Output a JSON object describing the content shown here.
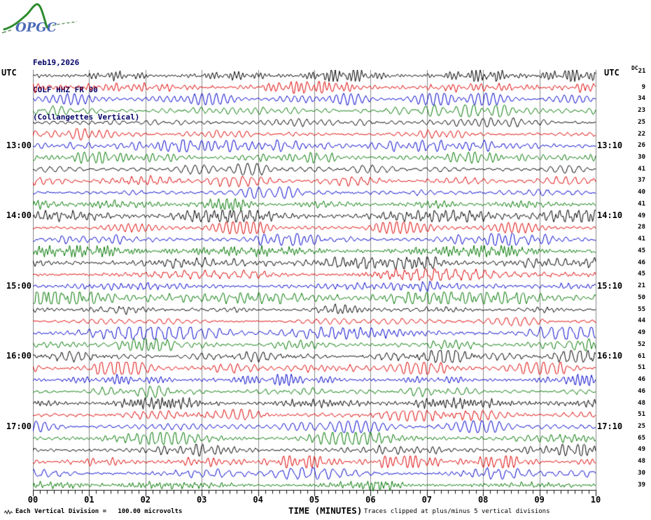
{
  "logo": {
    "text": "OPGC"
  },
  "header": {
    "date": "Feb19,2026",
    "station": "COLF HHZ FR 00",
    "instrument": "(Collangettes Vertical)"
  },
  "axis_left_label": "UTC",
  "axis_right_label": "UTC",
  "footer": {
    "scale_label": "Each Vertical Division =",
    "scale_value": "100.00 microvolts",
    "axis_title": "TIME (MINUTES)",
    "clip_note": "Traces clipped at plus/minus 5 vertical divisions"
  },
  "chart_data": {
    "type": "line",
    "subtype": "helicorder_seismogram",
    "title": "COLF HHZ FR 00 (Collangettes Vertical) Feb19,2026",
    "x_axis": {
      "label": "TIME (MINUTES)",
      "ticks": [
        "00",
        "01",
        "02",
        "03",
        "04",
        "05",
        "06",
        "07",
        "08",
        "09",
        "10"
      ],
      "range_minutes": [
        0,
        10
      ],
      "minor_divisions_per_minute": 8
    },
    "y_axis": {
      "label_left": "UTC",
      "label_right": "UTC",
      "hour_labels": [
        {
          "row": 6,
          "left": "13:00",
          "right": "13:10"
        },
        {
          "row": 12,
          "left": "14:00",
          "right": "14:10"
        },
        {
          "row": 18,
          "left": "15:00",
          "right": "15:10"
        },
        {
          "row": 24,
          "left": "16:00",
          "right": "16:10"
        },
        {
          "row": 30,
          "left": "17:00",
          "right": "17:10"
        }
      ]
    },
    "num_traces": 36,
    "minutes_per_trace": 10,
    "trace_color_cycle": [
      "#000000",
      "#dd0000",
      "#0000cc",
      "#007700"
    ],
    "dc_column": {
      "header": "DC",
      "values": [
        21,
        9,
        34,
        23,
        25,
        22,
        26,
        30,
        41,
        37,
        40,
        41,
        49,
        28,
        41,
        45,
        46,
        45,
        21,
        50,
        55,
        44,
        49,
        52,
        61,
        51,
        46,
        46,
        48,
        51,
        25,
        65,
        49,
        48,
        30,
        39
      ]
    },
    "scale": {
      "vertical_division": "100.00 microvolts",
      "clipping": "Traces clipped at plus/minus 5 vertical divisions"
    },
    "grid": {
      "vertical_minute_lines": true,
      "color": "#8a8a8a",
      "legend": "none"
    },
    "waveform": "continuous seismic background noise, quasi-periodic wiggles, amplitude roughly ±0.3–0.8 vertical divisions"
  },
  "colors": {
    "header_text": "#000066",
    "label_text": "#000000",
    "grid_line": "#8a8a8a",
    "background": "#ffffff",
    "logo_green": "#2e8b2e",
    "logo_blue": "#4a6ab8"
  }
}
